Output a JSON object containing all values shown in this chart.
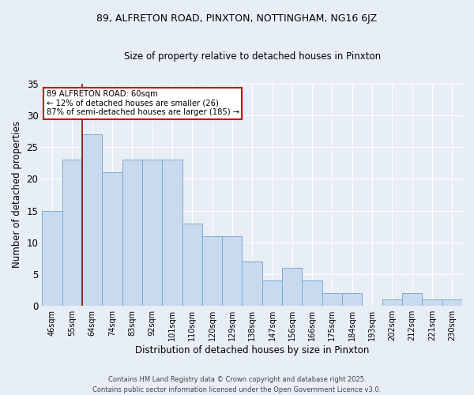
{
  "title1": "89, ALFRETON ROAD, PINXTON, NOTTINGHAM, NG16 6JZ",
  "title2": "Size of property relative to detached houses in Pinxton",
  "xlabel": "Distribution of detached houses by size in Pinxton",
  "ylabel": "Number of detached properties",
  "categories": [
    "46sqm",
    "55sqm",
    "64sqm",
    "74sqm",
    "83sqm",
    "92sqm",
    "101sqm",
    "110sqm",
    "120sqm",
    "129sqm",
    "138sqm",
    "147sqm",
    "156sqm",
    "166sqm",
    "175sqm",
    "184sqm",
    "193sqm",
    "202sqm",
    "212sqm",
    "221sqm",
    "230sqm"
  ],
  "values": [
    15,
    23,
    27,
    21,
    23,
    23,
    23,
    13,
    11,
    11,
    7,
    4,
    6,
    4,
    2,
    2,
    0,
    1,
    2,
    1,
    1
  ],
  "bar_color": "#c9d9ee",
  "bar_edge_color": "#7aadd4",
  "annotation_text": "89 ALFRETON ROAD: 60sqm\n← 12% of detached houses are smaller (26)\n87% of semi-detached houses are larger (185) →",
  "annotation_box_color": "#ffffff",
  "annotation_border_color": "#cc0000",
  "vline_color": "#aa0000",
  "vline_x": 1.5,
  "bg_color": "#e8eef5",
  "grid_color": "#ffffff",
  "footer": "Contains HM Land Registry data © Crown copyright and database right 2025.\nContains public sector information licensed under the Open Government Licence v3.0.",
  "ylim": [
    0,
    35
  ],
  "yticks": [
    0,
    5,
    10,
    15,
    20,
    25,
    30,
    35
  ]
}
